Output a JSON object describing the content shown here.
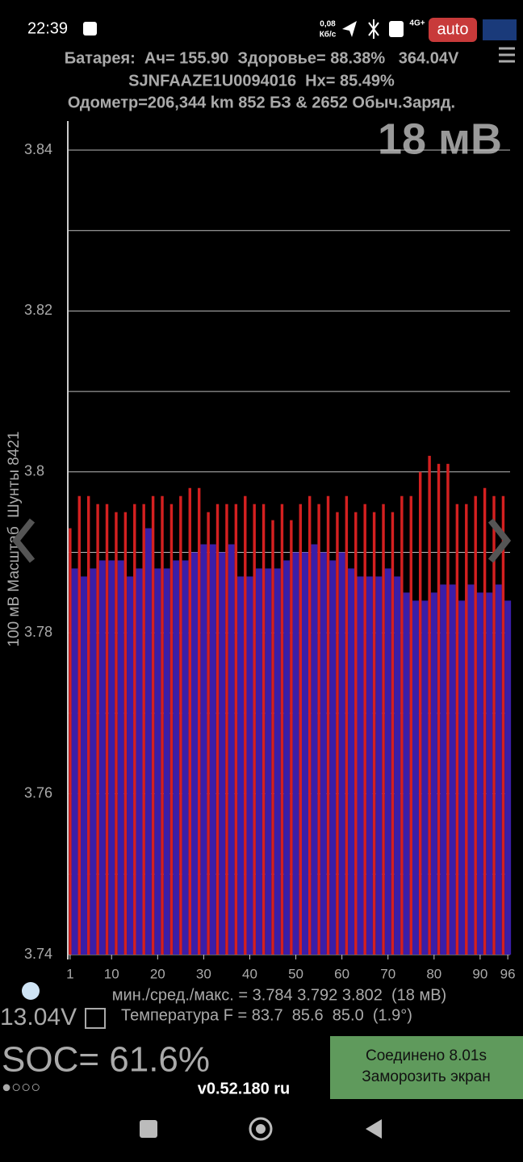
{
  "status_bar": {
    "time": "22:39",
    "speed_value": "0,08",
    "speed_unit": "Кб/с",
    "network": "4G+"
  },
  "header": {
    "line1": "Батарея:  Ач= 155.90  Здоровье= 88.38%   364.04V",
    "line2": "SJNFAAZE1U0094016  Hx= 85.49%",
    "line3": "Одометр=206,344 km 852 БЗ & 2652 Обыч.Заряд.",
    "auto_badge": "auto",
    "spread": "18 мВ"
  },
  "chart_data": {
    "type": "bar",
    "y_label": "100 мВ Масштаб  Шунты 8421",
    "xlim": [
      0.5,
      96.5
    ],
    "xticks": [
      1,
      10,
      20,
      30,
      40,
      50,
      60,
      70,
      80,
      90,
      96
    ],
    "ylim": [
      3.74,
      3.84
    ],
    "yticks": [
      3.74,
      3.76,
      3.78,
      3.8,
      3.82,
      3.84
    ],
    "minor_yticks": [
      3.75,
      3.77,
      3.79,
      3.81,
      3.83
    ],
    "grid": true,
    "series": [
      {
        "color": "#d42020",
        "x": [
          1,
          3,
          5,
          7,
          9,
          11,
          13,
          15,
          17,
          19,
          21,
          23,
          25,
          27,
          29,
          31,
          33,
          35,
          37,
          39,
          41,
          43,
          45,
          47,
          49,
          51,
          53,
          55,
          57,
          59,
          61,
          63,
          65,
          67,
          69,
          71,
          73,
          75,
          77,
          79,
          81,
          83,
          85,
          87,
          89,
          91,
          93,
          95
        ],
        "values": [
          3.793,
          3.797,
          3.797,
          3.796,
          3.796,
          3.795,
          3.795,
          3.796,
          3.796,
          3.797,
          3.797,
          3.796,
          3.797,
          3.798,
          3.798,
          3.795,
          3.796,
          3.796,
          3.796,
          3.797,
          3.796,
          3.796,
          3.794,
          3.796,
          3.794,
          3.796,
          3.797,
          3.796,
          3.797,
          3.795,
          3.797,
          3.795,
          3.796,
          3.795,
          3.796,
          3.795,
          3.797,
          3.797,
          3.8,
          3.802,
          3.801,
          3.801,
          3.796,
          3.796,
          3.797,
          3.798,
          3.797,
          3.797
        ]
      },
      {
        "color": "#3a1ea8",
        "x": [
          2,
          4,
          6,
          8,
          10,
          12,
          14,
          16,
          18,
          20,
          22,
          24,
          26,
          28,
          30,
          32,
          34,
          36,
          38,
          40,
          42,
          44,
          46,
          48,
          50,
          52,
          54,
          56,
          58,
          60,
          62,
          64,
          66,
          68,
          70,
          72,
          74,
          76,
          78,
          80,
          82,
          84,
          86,
          88,
          90,
          92,
          94,
          96
        ],
        "values": [
          3.788,
          3.787,
          3.788,
          3.789,
          3.789,
          3.789,
          3.787,
          3.788,
          3.793,
          3.788,
          3.788,
          3.789,
          3.789,
          3.79,
          3.791,
          3.791,
          3.79,
          3.791,
          3.787,
          3.787,
          3.788,
          3.788,
          3.788,
          3.789,
          3.79,
          3.79,
          3.791,
          3.79,
          3.789,
          3.79,
          3.788,
          3.787,
          3.787,
          3.787,
          3.788,
          3.787,
          3.785,
          3.784,
          3.784,
          3.785,
          3.786,
          3.786,
          3.784,
          3.786,
          3.785,
          3.785,
          3.786,
          3.784
        ]
      }
    ]
  },
  "footer": {
    "stats": "мин./сред./макс. = 3.784 3.792 3.802  (18 мВ)",
    "aux_voltage": "13.04V",
    "temperature": "Температура F = 83.7  85.6  85.0  (1.9°)",
    "soc": "SOC= 61.6%",
    "dots": "●○○○",
    "version": "v0.52.180 ru",
    "connected": "Соединено 8.01s",
    "freeze": "Заморозить экран"
  }
}
